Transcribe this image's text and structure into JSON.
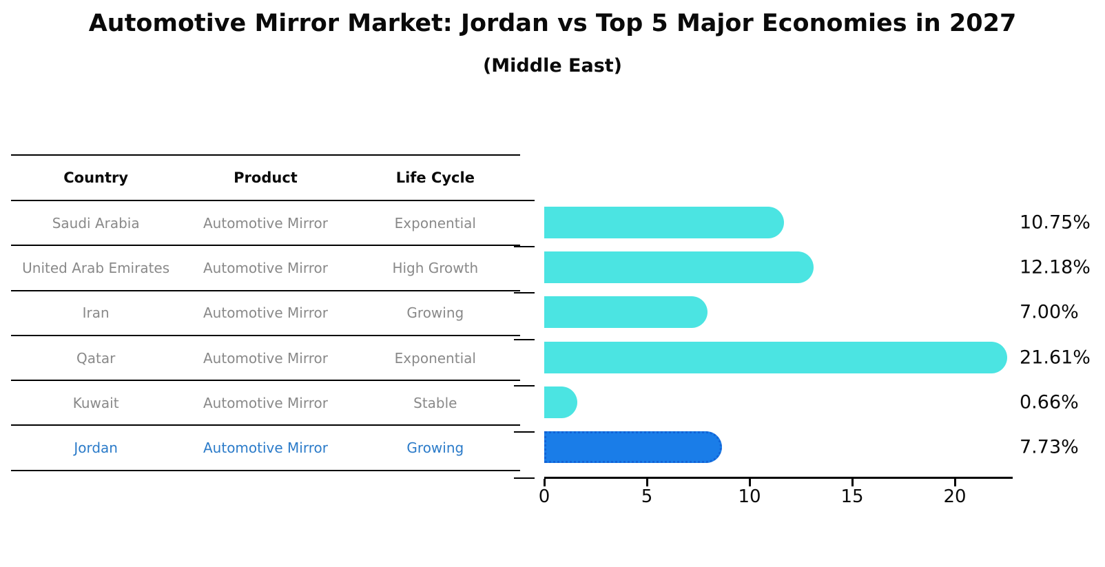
{
  "title": "Automotive Mirror Market: Jordan vs Top 5 Major Economies in 2027",
  "subtitle": "(Middle East)",
  "table": {
    "headers": [
      "Country",
      "Product",
      "Life Cycle"
    ],
    "rows": [
      {
        "country": "Saudi Arabia",
        "product": "Automotive Mirror",
        "life_cycle": "Exponential",
        "highlight": false
      },
      {
        "country": "United Arab Emirates",
        "product": "Automotive Mirror",
        "life_cycle": "High Growth",
        "highlight": false
      },
      {
        "country": "Iran",
        "product": "Automotive Mirror",
        "life_cycle": "Growing",
        "highlight": false
      },
      {
        "country": "Qatar",
        "product": "Automotive Mirror",
        "life_cycle": "Exponential",
        "highlight": false
      },
      {
        "country": "Kuwait",
        "product": "Automotive Mirror",
        "life_cycle": "Stable",
        "highlight": false
      },
      {
        "country": "Jordan",
        "product": "Automotive Mirror",
        "life_cycle": "Growing",
        "highlight": true
      }
    ]
  },
  "chart_data": {
    "type": "bar",
    "orientation": "horizontal",
    "title": "Automotive Mirror Market: Jordan vs Top 5 Major Economies in 2027",
    "subtitle": "(Middle East)",
    "categories": [
      "Saudi Arabia",
      "United Arab Emirates",
      "Iran",
      "Qatar",
      "Kuwait",
      "Jordan"
    ],
    "values": [
      10.75,
      12.18,
      7.0,
      21.61,
      0.66,
      7.73
    ],
    "value_labels": [
      "10.75%",
      "12.18%",
      "7.00%",
      "21.61%",
      "0.66%",
      "7.73%"
    ],
    "x_ticks": [
      "0",
      "5",
      "10",
      "15",
      "20"
    ],
    "xlim": [
      0,
      22.8
    ],
    "grid": false,
    "legend": false,
    "highlight_index": 5
  },
  "colors": {
    "bar": "#4BE4E2",
    "highlight_bar": "#1A7DE8",
    "highlight_border": "#1263D6",
    "highlight_text": "#2b7bc9",
    "table_text": "#898989",
    "axis": "#000000"
  }
}
